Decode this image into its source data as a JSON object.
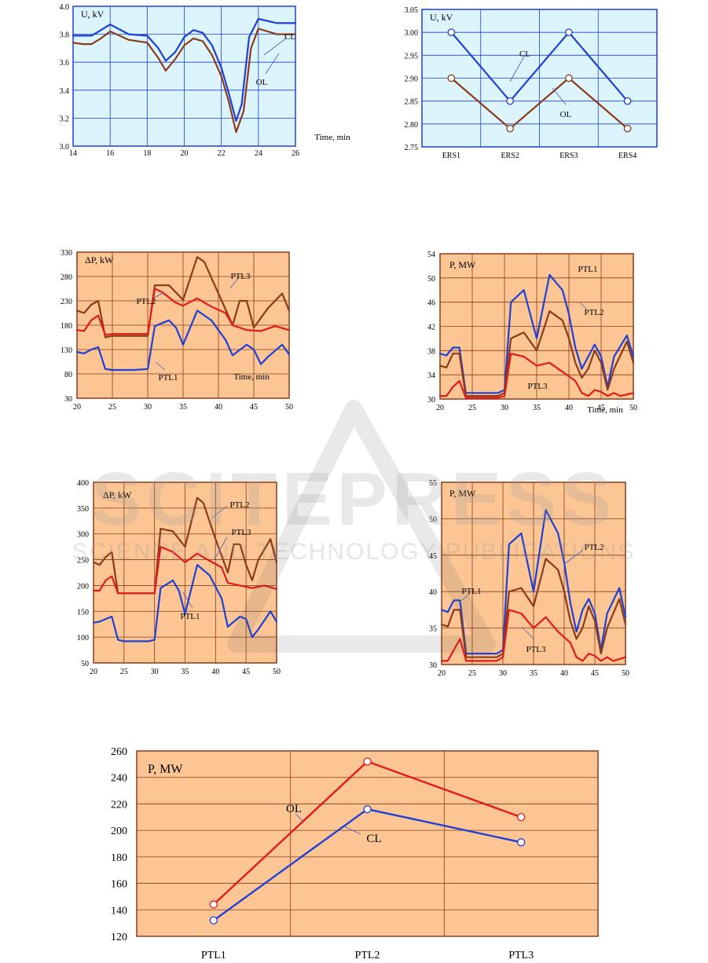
{
  "chart_data": [
    {
      "id": "c1",
      "type": "line",
      "ylabel": "U, kV",
      "xlabel": "Time, min",
      "xlim": [
        14,
        26
      ],
      "ylim": [
        3.0,
        4.0
      ],
      "xticks": [
        "14",
        "16",
        "18",
        "20",
        "22",
        "24",
        "26"
      ],
      "yticks": [
        "3.0",
        "3.2",
        "3.4",
        "3.6",
        "3.8",
        "4.0"
      ],
      "grid": true,
      "annotations": [
        {
          "text": "CL",
          "series": "CL"
        },
        {
          "text": "OL",
          "series": "OL"
        }
      ],
      "series": [
        {
          "name": "CL",
          "color": "#1f3fd6",
          "x": [
            14,
            15,
            15.5,
            16,
            17,
            18,
            18.6,
            19,
            19.5,
            20,
            20.5,
            21,
            21.5,
            22,
            22.4,
            22.8,
            23.1,
            23.5,
            24,
            25,
            26
          ],
          "y": [
            3.79,
            3.79,
            3.83,
            3.87,
            3.8,
            3.79,
            3.7,
            3.61,
            3.67,
            3.78,
            3.83,
            3.81,
            3.72,
            3.56,
            3.38,
            3.18,
            3.3,
            3.78,
            3.91,
            3.88,
            3.88
          ]
        },
        {
          "name": "OL",
          "color": "#8b3a1a",
          "x": [
            14,
            14.5,
            15,
            15.5,
            16,
            17,
            18,
            18.6,
            19,
            19.5,
            20,
            20.5,
            21,
            21.5,
            22,
            22.4,
            22.8,
            23.2,
            23.6,
            24,
            25,
            26
          ],
          "y": [
            3.74,
            3.73,
            3.73,
            3.77,
            3.82,
            3.76,
            3.74,
            3.63,
            3.54,
            3.62,
            3.72,
            3.77,
            3.75,
            3.65,
            3.5,
            3.32,
            3.1,
            3.25,
            3.7,
            3.84,
            3.8,
            3.8
          ]
        }
      ]
    },
    {
      "id": "c2",
      "type": "line",
      "ylabel": "U, kV",
      "categories": [
        "ERS1",
        "ERS2",
        "ERS3",
        "ERS4"
      ],
      "ylim": [
        2.75,
        3.05
      ],
      "yticks": [
        "2.75",
        "2.80",
        "2.85",
        "2.90",
        "2.95",
        "3.00",
        "3.05"
      ],
      "grid": true,
      "annotations": [
        {
          "text": "CL",
          "series": "CL"
        },
        {
          "text": "OL",
          "series": "OL"
        }
      ],
      "series": [
        {
          "name": "CL",
          "color": "#1f3fd6",
          "values": [
            3.0,
            2.85,
            3.0,
            2.85
          ]
        },
        {
          "name": "OL",
          "color": "#8b3a1a",
          "values": [
            2.9,
            2.79,
            2.9,
            2.79
          ]
        }
      ]
    },
    {
      "id": "c3",
      "type": "line",
      "ylabel": "ΔP, kW",
      "xlabel": "Time, min",
      "xlim": [
        20,
        50
      ],
      "ylim": [
        30,
        330
      ],
      "xticks": [
        "20",
        "25",
        "30",
        "35",
        "40",
        "45",
        "50"
      ],
      "yticks": [
        "30",
        "80",
        "130",
        "180",
        "230",
        "280",
        "330"
      ],
      "grid": true,
      "annotations": [
        {
          "text": "PTL3",
          "series": "PTL3"
        },
        {
          "text": "PTL2",
          "series": "PTL2"
        },
        {
          "text": "PTL1",
          "series": "PTL1"
        }
      ],
      "series": [
        {
          "name": "PTL3",
          "color": "#8b3a1a",
          "x": [
            20,
            21,
            22,
            23,
            24,
            25,
            27,
            30,
            31,
            33,
            35,
            37,
            38,
            40,
            42,
            43,
            44,
            45,
            46,
            47,
            49,
            50
          ],
          "y": [
            210,
            205,
            222,
            230,
            155,
            158,
            158,
            158,
            262,
            262,
            232,
            320,
            310,
            245,
            180,
            230,
            230,
            175,
            195,
            215,
            245,
            210
          ]
        },
        {
          "name": "PTL2",
          "color": "#e31a1a",
          "x": [
            20,
            21,
            22,
            23,
            24,
            25,
            30,
            31,
            32,
            34,
            35,
            37,
            39,
            41,
            42,
            44,
            46,
            48,
            50
          ],
          "y": [
            170,
            168,
            190,
            200,
            160,
            162,
            162,
            255,
            248,
            226,
            220,
            235,
            218,
            205,
            180,
            170,
            168,
            178,
            170
          ]
        },
        {
          "name": "PTL1",
          "color": "#1f3fd6",
          "x": [
            20,
            21,
            22,
            23,
            24,
            25,
            28,
            30,
            31,
            33,
            34,
            35,
            37,
            39,
            41,
            42,
            44,
            45,
            46,
            47,
            49,
            50
          ],
          "y": [
            125,
            122,
            130,
            135,
            90,
            88,
            88,
            90,
            178,
            190,
            175,
            140,
            210,
            190,
            150,
            118,
            140,
            130,
            100,
            115,
            140,
            120
          ]
        }
      ]
    },
    {
      "id": "c4",
      "type": "line",
      "ylabel": "P, MW",
      "xlabel": "Time, min",
      "xlim": [
        20,
        50
      ],
      "ylim": [
        30,
        54
      ],
      "xticks": [
        "20",
        "25",
        "30",
        "35",
        "40",
        "45",
        "50"
      ],
      "yticks": [
        "30",
        "34",
        "38",
        "42",
        "46",
        "50",
        "54"
      ],
      "grid": true,
      "annotations": [
        {
          "text": "PTL1",
          "series": "PTL1"
        },
        {
          "text": "PTL2",
          "series": "PTL2"
        },
        {
          "text": "PTL3",
          "series": "PTL3"
        }
      ],
      "series": [
        {
          "name": "PTL1",
          "color": "#1f3fd6",
          "x": [
            20,
            21,
            22,
            23,
            24,
            25,
            29,
            30,
            31,
            33,
            35,
            37,
            39,
            40,
            41,
            42,
            43,
            44,
            45,
            46,
            47,
            49,
            50
          ],
          "y": [
            37.5,
            37.2,
            38.5,
            38.5,
            31,
            31,
            31,
            31.5,
            46,
            48,
            40,
            50.5,
            48,
            44,
            38.5,
            35,
            37,
            39,
            37,
            32,
            37,
            40.5,
            37
          ]
        },
        {
          "name": "PTL2",
          "color": "#8b3a1a",
          "x": [
            20,
            21,
            22,
            23,
            24,
            25,
            29,
            30,
            31,
            33,
            35,
            37,
            39,
            40,
            41,
            42,
            43,
            44,
            45,
            46,
            47,
            49,
            50
          ],
          "y": [
            35.5,
            35.2,
            37.5,
            37.5,
            30.5,
            30.5,
            30.5,
            31,
            40,
            41,
            38,
            44.5,
            43,
            40,
            36,
            33.5,
            35,
            38,
            36,
            31.5,
            35,
            39.5,
            36
          ]
        },
        {
          "name": "PTL3",
          "color": "#e31a1a",
          "x": [
            20,
            21,
            22,
            23,
            24,
            25,
            29,
            30,
            31,
            33,
            35,
            37,
            39,
            41,
            42,
            43,
            44,
            45,
            46,
            47,
            48,
            50
          ],
          "y": [
            30.5,
            30.5,
            32,
            33,
            30.2,
            30.2,
            30.2,
            30.5,
            37.5,
            37,
            35.5,
            36,
            34.5,
            33,
            31,
            30.5,
            31.5,
            31.2,
            30.5,
            31,
            30.5,
            31
          ]
        }
      ]
    },
    {
      "id": "c5",
      "type": "line",
      "ylabel": "ΔP, kW",
      "xlim": [
        20,
        50
      ],
      "ylim": [
        50,
        400
      ],
      "xticks": [
        "20",
        "25",
        "30",
        "35",
        "40",
        "45",
        "50"
      ],
      "yticks": [
        "50",
        "100",
        "150",
        "200",
        "250",
        "300",
        "350",
        "400"
      ],
      "grid": true,
      "annotations": [
        {
          "text": "PTL2",
          "series": "PTL2"
        },
        {
          "text": "PTL3",
          "series": "PTL3"
        },
        {
          "text": "PTL1",
          "series": "PTL1"
        }
      ],
      "series": [
        {
          "name": "PTL2",
          "color": "#8b3a1a",
          "x": [
            20,
            21,
            22,
            23,
            24,
            25,
            30,
            31,
            33,
            35,
            37,
            38,
            40,
            42,
            43,
            44,
            45,
            46,
            47,
            48,
            49,
            50
          ],
          "y": [
            245,
            240,
            255,
            265,
            185,
            185,
            185,
            310,
            305,
            275,
            370,
            360,
            290,
            225,
            280,
            280,
            240,
            210,
            250,
            270,
            290,
            245
          ]
        },
        {
          "name": "PTL3",
          "color": "#e31a1a",
          "x": [
            20,
            21,
            22,
            23,
            24,
            25,
            30,
            31,
            33,
            35,
            37,
            39,
            41,
            42,
            44,
            46,
            48,
            50
          ],
          "y": [
            190,
            190,
            210,
            218,
            185,
            185,
            185,
            275,
            265,
            245,
            262,
            248,
            235,
            205,
            200,
            195,
            200,
            193
          ]
        },
        {
          "name": "PTL1",
          "color": "#1f3fd6",
          "x": [
            20,
            21,
            22,
            23,
            24,
            25,
            29,
            30,
            31,
            33,
            34,
            35,
            37,
            39,
            41,
            42,
            44,
            45,
            46,
            47,
            49,
            50
          ],
          "y": [
            128,
            130,
            135,
            140,
            95,
            92,
            92,
            95,
            195,
            210,
            190,
            145,
            240,
            220,
            175,
            120,
            140,
            135,
            100,
            115,
            150,
            130
          ]
        }
      ]
    },
    {
      "id": "c6",
      "type": "line",
      "ylabel": "P, MW",
      "xlim": [
        20,
        50
      ],
      "ylim": [
        30,
        55
      ],
      "xticks": [
        "20",
        "25",
        "30",
        "35",
        "40",
        "45",
        "50"
      ],
      "yticks": [
        "30",
        "35",
        "40",
        "45",
        "50",
        "55"
      ],
      "grid": true,
      "annotations": [
        {
          "text": "PTL2",
          "series": "PTL2"
        },
        {
          "text": "PTL1",
          "series": "PTL1"
        },
        {
          "text": "PTL3",
          "series": "PTL3"
        }
      ],
      "series": [
        {
          "name": "PTL1",
          "color": "#1f3fd6",
          "x": [
            20,
            21,
            22,
            23,
            24,
            25,
            29,
            30,
            31,
            33,
            35,
            37,
            39,
            40,
            41,
            42,
            43,
            44,
            45,
            46,
            47,
            49,
            50
          ],
          "y": [
            37.5,
            37.2,
            38.8,
            38.8,
            31.5,
            31.5,
            31.5,
            32,
            46.5,
            48,
            40,
            51.2,
            48,
            44,
            38.5,
            34.5,
            37.5,
            39,
            37,
            32,
            37,
            40.5,
            36.5
          ]
        },
        {
          "name": "PTL2",
          "color": "#8b3a1a",
          "x": [
            20,
            21,
            22,
            23,
            24,
            25,
            29,
            30,
            31,
            33,
            35,
            37,
            39,
            40,
            41,
            42,
            43,
            44,
            45,
            46,
            47,
            49,
            50
          ],
          "y": [
            35.5,
            35.2,
            37.5,
            37.5,
            31,
            31,
            31,
            31.5,
            40,
            40.5,
            38,
            44.5,
            43,
            40,
            36,
            33.5,
            35,
            38,
            36,
            31.5,
            35,
            39,
            35.5
          ]
        },
        {
          "name": "PTL3",
          "color": "#e31a1a",
          "x": [
            20,
            21,
            22,
            23,
            24,
            25,
            29,
            30,
            31,
            33,
            35,
            37,
            39,
            41,
            42,
            43,
            44,
            45,
            46,
            47,
            48,
            50
          ],
          "y": [
            30.5,
            30.5,
            32,
            33.5,
            30.5,
            30.5,
            30.5,
            31,
            37.5,
            37,
            35,
            36.5,
            34.5,
            33,
            31,
            30.5,
            31.5,
            31.2,
            30.5,
            31,
            30.5,
            31
          ]
        }
      ]
    },
    {
      "id": "c7",
      "type": "line",
      "ylabel": "P, MW",
      "categories": [
        "PTL1",
        "PTL2",
        "PTL3"
      ],
      "ylim": [
        120,
        260
      ],
      "yticks": [
        "120",
        "140",
        "160",
        "180",
        "200",
        "220",
        "240",
        "260"
      ],
      "grid": true,
      "annotations": [
        {
          "text": "OL",
          "series": "OL"
        },
        {
          "text": "CL",
          "series": "CL"
        }
      ],
      "series": [
        {
          "name": "OL",
          "color": "#e31a1a",
          "values": [
            144,
            252,
            210
          ]
        },
        {
          "name": "CL",
          "color": "#1f3fd6",
          "values": [
            132,
            216,
            191
          ]
        }
      ]
    }
  ],
  "watermark": {
    "big": "SCITEPRESS",
    "small": "SCIENCE AND TECHNOLOGY PUBLICATIONS"
  }
}
